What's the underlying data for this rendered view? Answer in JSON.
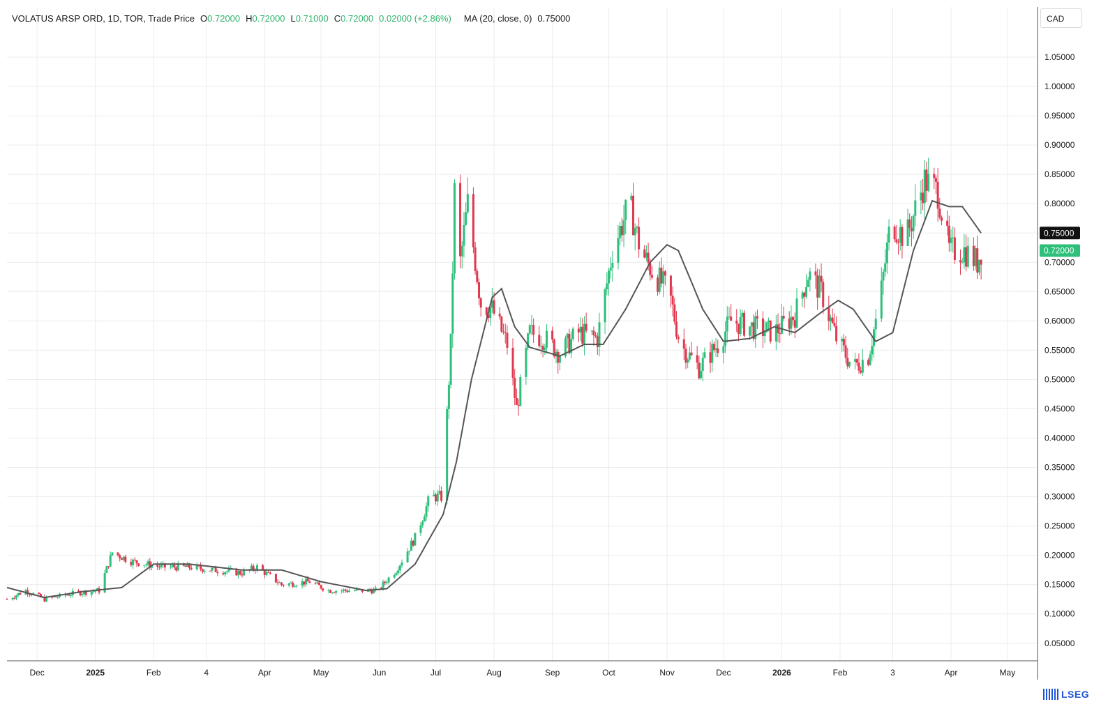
{
  "header": {
    "instrument": "VOLATUS ARSP ORD, 1D, TOR, Trade Price",
    "o_label": "O",
    "o_value": "0.72000",
    "h_label": "H",
    "h_value": "0.72000",
    "l_label": "L",
    "l_value": "0.71000",
    "c_label": "C",
    "c_value": "0.72000",
    "change": "0.02000 (+2.86%)",
    "ma_label": "MA (20, close, 0)",
    "ma_value": "0.75000"
  },
  "currency_button": "CAD",
  "brand": "LSEG",
  "colors": {
    "up": "#2ebf7a",
    "down": "#e0384f",
    "ma": "#555555",
    "grid": "#ececec",
    "ma_badge": "#111111",
    "price_badge": "#2ebf7a"
  },
  "chart_data": {
    "type": "candlestick",
    "title": "VOLATUS ARSP ORD, 1D, TOR, Trade Price",
    "ylim": [
      0.02,
      1.1
    ],
    "y_ticks": [
      "0.05000",
      "0.10000",
      "0.15000",
      "0.20000",
      "0.25000",
      "0.30000",
      "0.35000",
      "0.40000",
      "0.45000",
      "0.50000",
      "0.55000",
      "0.60000",
      "0.65000",
      "0.70000",
      "0.75000",
      "0.80000",
      "0.85000",
      "0.90000",
      "0.95000",
      "1.00000",
      "1.05000"
    ],
    "x_ticks": [
      {
        "label": "Dec",
        "date": "2024-12-01",
        "bold": false
      },
      {
        "label": "2025",
        "date": "2025-01-01",
        "bold": true
      },
      {
        "label": "Feb",
        "date": "2025-02-01",
        "bold": false
      },
      {
        "label": "4",
        "date": "2025-03-01",
        "bold": false
      },
      {
        "label": "Apr",
        "date": "2025-04-01",
        "bold": false
      },
      {
        "label": "May",
        "date": "2025-05-01",
        "bold": false
      },
      {
        "label": "Jun",
        "date": "2025-06-01",
        "bold": false
      },
      {
        "label": "Jul",
        "date": "2025-07-01",
        "bold": false
      },
      {
        "label": "Aug",
        "date": "2025-08-01",
        "bold": false
      },
      {
        "label": "Sep",
        "date": "2025-09-01",
        "bold": false
      },
      {
        "label": "Oct",
        "date": "2025-10-01",
        "bold": false
      },
      {
        "label": "Nov",
        "date": "2025-11-01",
        "bold": false
      },
      {
        "label": "Dec",
        "date": "2025-12-01",
        "bold": false
      },
      {
        "label": "2026",
        "date": "2026-01-01",
        "bold": true
      },
      {
        "label": "Feb",
        "date": "2026-02-01",
        "bold": false
      },
      {
        "label": "3",
        "date": "2026-03-01",
        "bold": false
      },
      {
        "label": "Apr",
        "date": "2026-04-01",
        "bold": false
      },
      {
        "label": "May",
        "date": "2026-05-01",
        "bold": false
      }
    ],
    "x_range": [
      "2024-11-15",
      "2026-05-17"
    ],
    "price_anchors": [
      [
        "2024-11-15",
        0.125
      ],
      [
        "2024-11-25",
        0.14
      ],
      [
        "2024-12-05",
        0.125
      ],
      [
        "2024-12-20",
        0.135
      ],
      [
        "2025-01-03",
        0.14
      ],
      [
        "2025-01-10",
        0.205
      ],
      [
        "2025-01-20",
        0.19
      ],
      [
        "2025-02-05",
        0.18
      ],
      [
        "2025-02-20",
        0.18
      ],
      [
        "2025-03-05",
        0.175
      ],
      [
        "2025-03-20",
        0.17
      ],
      [
        "2025-03-28",
        0.18
      ],
      [
        "2025-04-10",
        0.15
      ],
      [
        "2025-04-25",
        0.155
      ],
      [
        "2025-05-05",
        0.14
      ],
      [
        "2025-05-20",
        0.14
      ],
      [
        "2025-05-31",
        0.14
      ],
      [
        "2025-06-10",
        0.175
      ],
      [
        "2025-06-20",
        0.23
      ],
      [
        "2025-06-28",
        0.3
      ],
      [
        "2025-07-05",
        0.3
      ],
      [
        "2025-07-07",
        0.44
      ],
      [
        "2025-07-09",
        0.56
      ],
      [
        "2025-07-11",
        0.82
      ],
      [
        "2025-07-14",
        0.7
      ],
      [
        "2025-07-18",
        0.8
      ],
      [
        "2025-07-25",
        0.63
      ],
      [
        "2025-07-31",
        0.62
      ],
      [
        "2025-08-08",
        0.56
      ],
      [
        "2025-08-13",
        0.45
      ],
      [
        "2025-08-20",
        0.58
      ],
      [
        "2025-08-28",
        0.57
      ],
      [
        "2025-09-05",
        0.545
      ],
      [
        "2025-09-15",
        0.58
      ],
      [
        "2025-09-25",
        0.57
      ],
      [
        "2025-10-03",
        0.72
      ],
      [
        "2025-10-12",
        0.8
      ],
      [
        "2025-10-18",
        0.72
      ],
      [
        "2025-10-25",
        0.68
      ],
      [
        "2025-11-02",
        0.65
      ],
      [
        "2025-11-08",
        0.56
      ],
      [
        "2025-11-18",
        0.52
      ],
      [
        "2025-11-28",
        0.56
      ],
      [
        "2025-12-05",
        0.6
      ],
      [
        "2025-12-15",
        0.59
      ],
      [
        "2025-12-28",
        0.58
      ],
      [
        "2026-01-08",
        0.61
      ],
      [
        "2026-01-15",
        0.68
      ],
      [
        "2026-01-22",
        0.65
      ],
      [
        "2026-01-30",
        0.57
      ],
      [
        "2026-02-08",
        0.52
      ],
      [
        "2026-02-16",
        0.54
      ],
      [
        "2026-02-22",
        0.63
      ],
      [
        "2026-02-28",
        0.77
      ],
      [
        "2026-03-08",
        0.74
      ],
      [
        "2026-03-18",
        0.84
      ],
      [
        "2026-03-25",
        0.82
      ],
      [
        "2026-03-31",
        0.72
      ],
      [
        "2026-04-08",
        0.72
      ],
      [
        "2026-04-15",
        0.7
      ],
      [
        "2026-04-17",
        0.72
      ]
    ],
    "ma_anchors": [
      [
        "2024-11-15",
        0.145
      ],
      [
        "2024-12-05",
        0.128
      ],
      [
        "2024-12-25",
        0.138
      ],
      [
        "2025-01-15",
        0.145
      ],
      [
        "2025-02-01",
        0.185
      ],
      [
        "2025-02-20",
        0.185
      ],
      [
        "2025-03-20",
        0.175
      ],
      [
        "2025-04-10",
        0.175
      ],
      [
        "2025-05-01",
        0.155
      ],
      [
        "2025-05-25",
        0.14
      ],
      [
        "2025-06-05",
        0.143
      ],
      [
        "2025-06-20",
        0.185
      ],
      [
        "2025-07-05",
        0.27
      ],
      [
        "2025-07-12",
        0.36
      ],
      [
        "2025-07-20",
        0.5
      ],
      [
        "2025-07-31",
        0.64
      ],
      [
        "2025-08-05",
        0.655
      ],
      [
        "2025-08-12",
        0.59
      ],
      [
        "2025-08-20",
        0.555
      ],
      [
        "2025-09-05",
        0.54
      ],
      [
        "2025-09-18",
        0.56
      ],
      [
        "2025-09-28",
        0.56
      ],
      [
        "2025-10-10",
        0.62
      ],
      [
        "2025-10-23",
        0.7
      ],
      [
        "2025-11-01",
        0.73
      ],
      [
        "2025-11-07",
        0.72
      ],
      [
        "2025-11-20",
        0.62
      ],
      [
        "2025-12-01",
        0.565
      ],
      [
        "2025-12-15",
        0.57
      ],
      [
        "2025-12-28",
        0.59
      ],
      [
        "2026-01-08",
        0.58
      ],
      [
        "2026-01-20",
        0.61
      ],
      [
        "2026-01-31",
        0.635
      ],
      [
        "2026-02-08",
        0.62
      ],
      [
        "2026-02-20",
        0.565
      ],
      [
        "2026-03-01",
        0.58
      ],
      [
        "2026-03-12",
        0.72
      ],
      [
        "2026-03-22",
        0.805
      ],
      [
        "2026-03-31",
        0.795
      ],
      [
        "2026-04-07",
        0.795
      ],
      [
        "2026-04-17",
        0.75
      ]
    ],
    "last_ma": "0.75000",
    "last_price": "0.72000"
  }
}
